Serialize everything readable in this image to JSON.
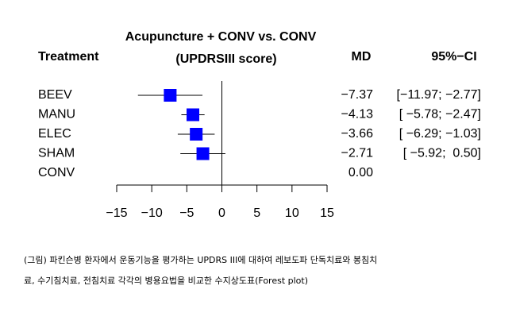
{
  "chart_data": {
    "type": "forest",
    "title": "Acupuncture + CONV vs. CONV",
    "subtitle": "(UPDRSIII score)",
    "column_headers": [
      "Treatment",
      "MD",
      "95%−CI"
    ],
    "categories": [
      "BEEV",
      "MANU",
      "ELEC",
      "SHAM",
      "CONV"
    ],
    "values": [
      -7.37,
      -4.13,
      -3.66,
      -2.71,
      0
    ],
    "value_labels": [
      "−7.37",
      "−4.13",
      "−3.66",
      "−2.71",
      "0.00"
    ],
    "ci_lower": [
      -11.97,
      -5.78,
      -6.29,
      -5.92,
      null
    ],
    "ci_upper": [
      -2.77,
      -2.47,
      -1.03,
      0.5,
      null
    ],
    "ci_labels": [
      "[−11.97; −2.77]",
      "[ −5.78; −2.47]",
      "[ −6.29; −1.03]",
      "[ −5.92;  0.50]",
      null
    ],
    "color": "#0000ff",
    "xlim": [
      -15,
      15
    ],
    "xticks": [
      {
        "value": -15,
        "label": "−15"
      },
      {
        "value": -10,
        "label": "−10"
      },
      {
        "value": -5,
        "label": "−5"
      },
      0,
      5,
      10,
      15
    ]
  },
  "caption": [
    "(그림) 파킨슨병 환자에서 운동기능을 평가하는 UPDRS III에 대하여 레보도파 단독치료와 봉침치",
    "료, 수기침치료, 전침치료 각각의 병용요법을 비교한 수지상도표(Forest plot)"
  ]
}
